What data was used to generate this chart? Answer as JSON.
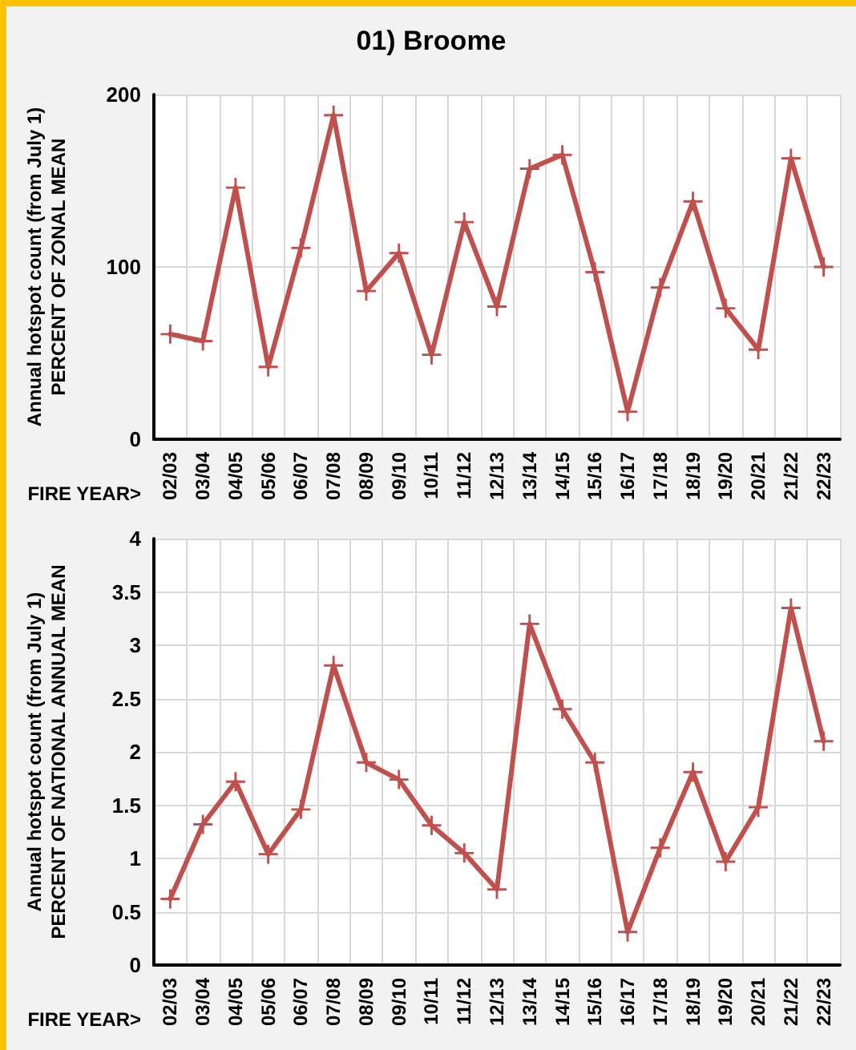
{
  "chart_data": [
    {
      "type": "line",
      "title": "01) Broome",
      "xlabel": "FIRE YEAR>",
      "ylabel": "Annual hotspot count (from July 1)\nPERCENT OF ZONAL MEAN",
      "categories": [
        "02/03",
        "03/04",
        "04/05",
        "05/06",
        "06/07",
        "07/08",
        "08/09",
        "09/10",
        "10/11",
        "11/12",
        "12/13",
        "13/14",
        "14/15",
        "15/16",
        "16/17",
        "17/18",
        "18/19",
        "19/20",
        "20/21",
        "21/22",
        "22/23"
      ],
      "series": [
        {
          "color": "#c0504d",
          "values": [
            61,
            57,
            146,
            42,
            111,
            188,
            86,
            108,
            49,
            126,
            77,
            157,
            165,
            97,
            16,
            88,
            138,
            76,
            52,
            163,
            100
          ]
        }
      ],
      "ylim": [
        0,
        200
      ],
      "yticks": [
        0,
        100,
        200
      ],
      "grid": true,
      "marker": "cross"
    },
    {
      "type": "line",
      "xlabel": "FIRE YEAR>",
      "ylabel": "Annual hotspot count (from July 1)\nPERCENT OF NATIONAL ANNUAL MEAN",
      "categories": [
        "02/03",
        "03/04",
        "04/05",
        "05/06",
        "06/07",
        "07/08",
        "08/09",
        "09/10",
        "10/11",
        "11/12",
        "12/13",
        "13/14",
        "14/15",
        "15/16",
        "16/17",
        "17/18",
        "18/19",
        "19/20",
        "20/21",
        "21/22",
        "22/23"
      ],
      "series": [
        {
          "color": "#c0504d",
          "values": [
            0.62,
            1.32,
            1.72,
            1.04,
            1.46,
            2.81,
            1.9,
            1.74,
            1.31,
            1.05,
            0.71,
            3.2,
            2.4,
            1.9,
            0.31,
            1.1,
            1.81,
            0.97,
            1.48,
            3.35,
            2.1
          ]
        }
      ],
      "ylim": [
        0,
        4
      ],
      "yticks": [
        0,
        0.5,
        1,
        1.5,
        2,
        2.5,
        3,
        3.5,
        4
      ],
      "grid": true,
      "marker": "cross"
    }
  ]
}
